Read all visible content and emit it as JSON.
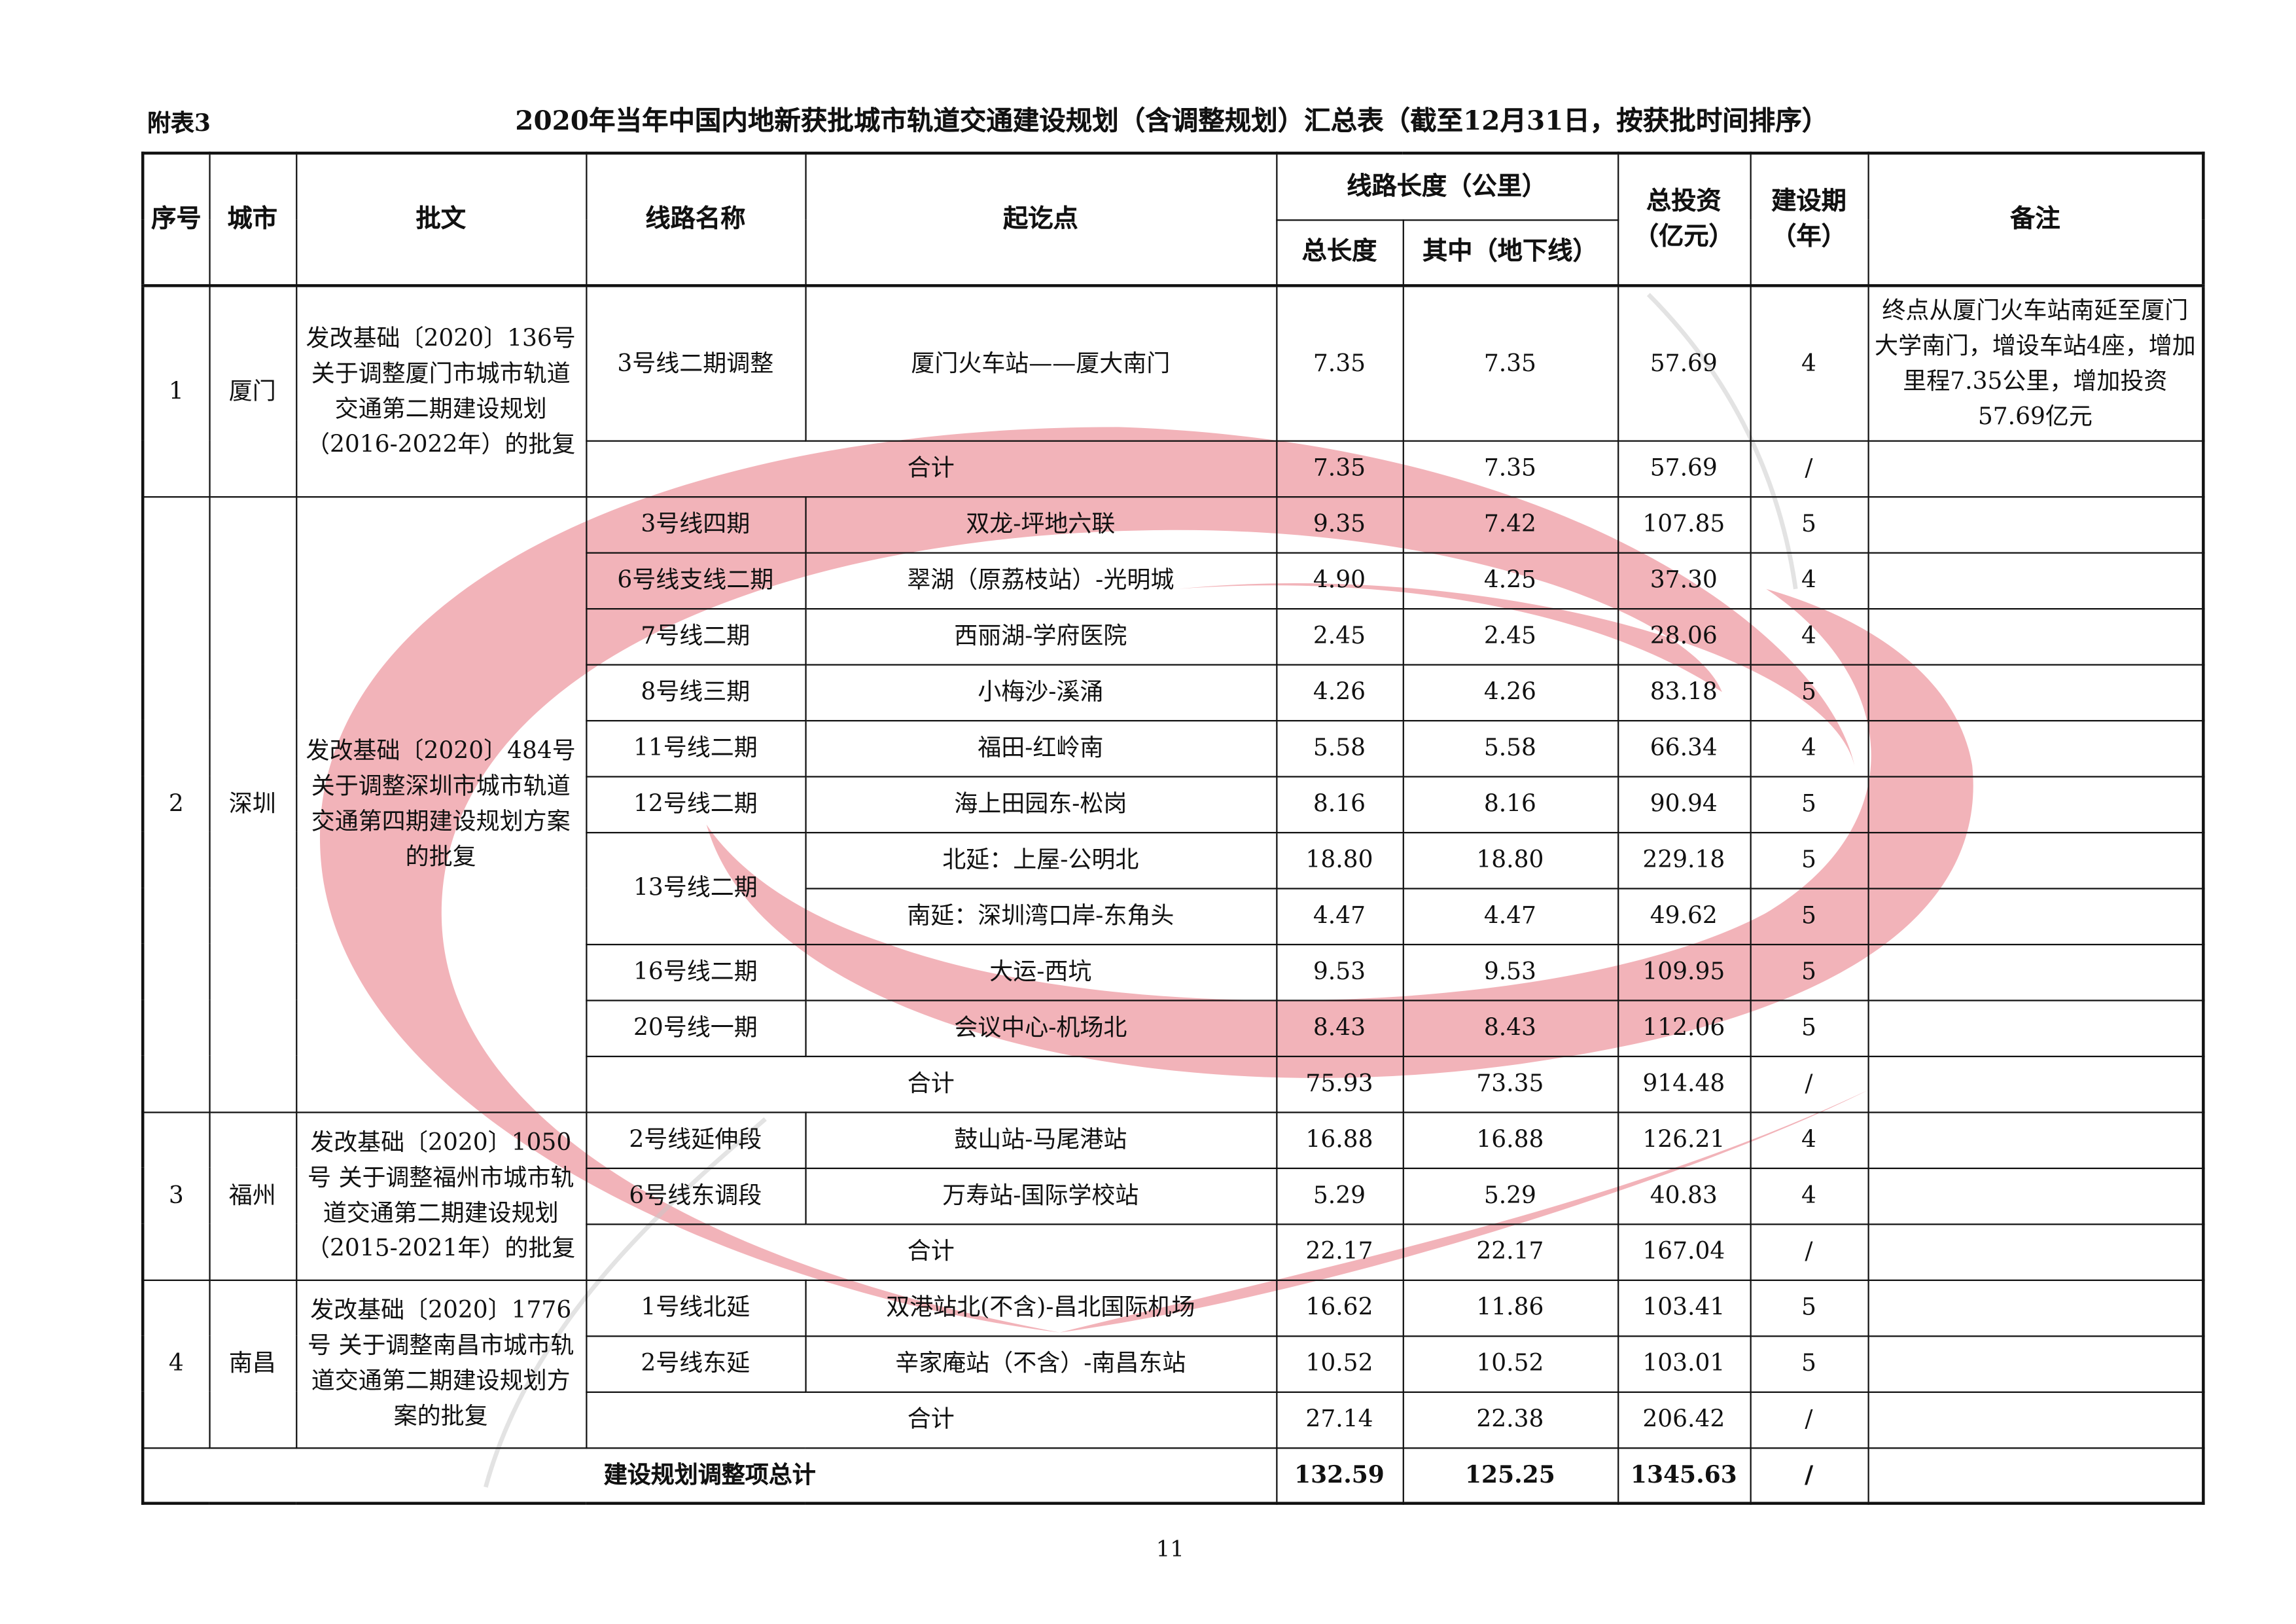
{
  "label": "附表3",
  "title": "2020年当年中国内地新获批城市轨道交通建设规划（含调整规划）汇总表（截至12月31日，按获批时间排序）",
  "headers": {
    "no": "序号",
    "city": "城市",
    "approval": "批文",
    "line": "线路名称",
    "route": "起讫点",
    "length_group": "线路长度（公里）",
    "total": "总长度",
    "underground": "其中（地下线）",
    "invest": "总投资（亿元）",
    "period": "建设期（年）",
    "note": "备注"
  },
  "groups": [
    {
      "no": "1",
      "city": "厦门",
      "approval": "发改基础〔2020〕136号 关于调整厦门市城市轨道交通第二期建设规划（2016-2022年）的批复",
      "lines": [
        {
          "name": "3号线二期调整",
          "segments": [
            {
              "route": "厦门火车站——厦大南门",
              "total": "7.35",
              "underground": "7.35",
              "invest": "57.69",
              "period": "4",
              "note": "终点从厦门火车站南延至厦门大学南门，增设车站4座，增加里程7.35公里，增加投资57.69亿元"
            }
          ]
        }
      ],
      "subtotal": {
        "label": "合计",
        "total": "7.35",
        "underground": "7.35",
        "invest": "57.69",
        "period": "/"
      }
    },
    {
      "no": "2",
      "city": "深圳",
      "approval": "发改基础〔2020〕484号 关于调整深圳市城市轨道交通第四期建设规划方案的批复",
      "lines": [
        {
          "name": "3号线四期",
          "segments": [
            {
              "route": "双龙-坪地六联",
              "total": "9.35",
              "underground": "7.42",
              "invest": "107.85",
              "period": "5"
            }
          ]
        },
        {
          "name": "6号线支线二期",
          "segments": [
            {
              "route": "翠湖（原荔枝站）-光明城",
              "total": "4.90",
              "underground": "4.25",
              "invest": "37.30",
              "period": "4"
            }
          ]
        },
        {
          "name": "7号线二期",
          "segments": [
            {
              "route": "西丽湖-学府医院",
              "total": "2.45",
              "underground": "2.45",
              "invest": "28.06",
              "period": "4"
            }
          ]
        },
        {
          "name": "8号线三期",
          "segments": [
            {
              "route": "小梅沙-溪涌",
              "total": "4.26",
              "underground": "4.26",
              "invest": "83.18",
              "period": "5"
            }
          ]
        },
        {
          "name": "11号线二期",
          "segments": [
            {
              "route": "福田-红岭南",
              "total": "5.58",
              "underground": "5.58",
              "invest": "66.34",
              "period": "4"
            }
          ]
        },
        {
          "name": "12号线二期",
          "segments": [
            {
              "route": "海上田园东-松岗",
              "total": "8.16",
              "underground": "8.16",
              "invest": "90.94",
              "period": "5"
            }
          ]
        },
        {
          "name": "13号线二期",
          "segments": [
            {
              "route": "北延：上屋-公明北",
              "total": "18.80",
              "underground": "18.80",
              "invest": "229.18",
              "period": "5"
            },
            {
              "route": "南延：深圳湾口岸-东角头",
              "total": "4.47",
              "underground": "4.47",
              "invest": "49.62",
              "period": "5"
            }
          ]
        },
        {
          "name": "16号线二期",
          "segments": [
            {
              "route": "大运-西坑",
              "total": "9.53",
              "underground": "9.53",
              "invest": "109.95",
              "period": "5"
            }
          ]
        },
        {
          "name": "20号线一期",
          "segments": [
            {
              "route": "会议中心-机场北",
              "total": "8.43",
              "underground": "8.43",
              "invest": "112.06",
              "period": "5"
            }
          ]
        }
      ],
      "subtotal": {
        "label": "合计",
        "total": "75.93",
        "underground": "73.35",
        "invest": "914.48",
        "period": "/"
      }
    },
    {
      "no": "3",
      "city": "福州",
      "approval": "发改基础〔2020〕1050号 关于调整福州市城市轨道交通第二期建设规划（2015-2021年）的批复",
      "lines": [
        {
          "name": "2号线延伸段",
          "segments": [
            {
              "route": "鼓山站-马尾港站",
              "total": "16.88",
              "underground": "16.88",
              "invest": "126.21",
              "period": "4"
            }
          ]
        },
        {
          "name": "6号线东调段",
          "segments": [
            {
              "route": "万寿站-国际学校站",
              "total": "5.29",
              "underground": "5.29",
              "invest": "40.83",
              "period": "4"
            }
          ]
        }
      ],
      "subtotal": {
        "label": "合计",
        "total": "22.17",
        "underground": "22.17",
        "invest": "167.04",
        "period": "/"
      }
    },
    {
      "no": "4",
      "city": "南昌",
      "approval": "发改基础〔2020〕1776号 关于调整南昌市城市轨道交通第二期建设规划方案的批复",
      "lines": [
        {
          "name": "1号线北延",
          "segments": [
            {
              "route": "双港站北(不含)-昌北国际机场",
              "total": "16.62",
              "underground": "11.86",
              "invest": "103.41",
              "period": "5"
            }
          ]
        },
        {
          "name": "2号线东延",
          "segments": [
            {
              "route": "辛家庵站（不含）-南昌东站",
              "total": "10.52",
              "underground": "10.52",
              "invest": "103.01",
              "period": "5"
            }
          ]
        }
      ],
      "subtotal": {
        "label": "合计",
        "total": "27.14",
        "underground": "22.38",
        "invest": "206.42",
        "period": "/"
      }
    }
  ],
  "grand_total": {
    "label": "建设规划调整项总计",
    "total": "132.59",
    "underground": "125.25",
    "invest": "1345.63",
    "period": "/"
  },
  "page_number": "11",
  "watermark_color": "#e87882"
}
